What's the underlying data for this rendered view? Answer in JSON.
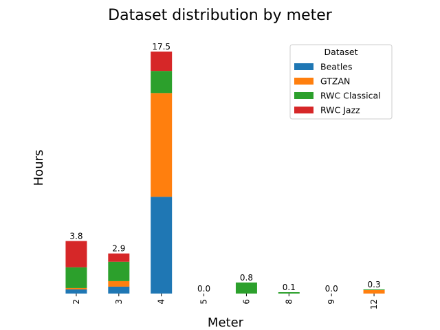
{
  "chart_data": {
    "type": "bar",
    "stacked": true,
    "title": "Dataset distribution by meter",
    "xlabel": "Meter",
    "ylabel": "Hours",
    "categories": [
      "2",
      "3",
      "4",
      "5",
      "6",
      "8",
      "9",
      "12"
    ],
    "series": [
      {
        "name": "Beatles",
        "color": "#1f77b4",
        "values": [
          0.3,
          0.5,
          7.0,
          0.0,
          0.0,
          0.0,
          0.0,
          0.0
        ]
      },
      {
        "name": "GTZAN",
        "color": "#ff7f0e",
        "values": [
          0.1,
          0.4,
          7.5,
          0.0,
          0.0,
          0.0,
          0.0,
          0.25
        ]
      },
      {
        "name": "RWC Classical",
        "color": "#2ca02c",
        "values": [
          1.5,
          1.4,
          1.6,
          0.0,
          0.8,
          0.1,
          0.0,
          0.05
        ]
      },
      {
        "name": "RWC Jazz",
        "color": "#d62728",
        "values": [
          1.9,
          0.6,
          1.4,
          0.0,
          0.0,
          0.0,
          0.0,
          0.0
        ]
      }
    ],
    "totals": [
      "3.8",
      "2.9",
      "17.5",
      "0.0",
      "0.8",
      "0.1",
      "0.0",
      "0.3"
    ],
    "ylim": [
      0,
      17.5
    ],
    "grid": false,
    "legend": {
      "title": "Dataset",
      "placement": "top-right"
    }
  }
}
